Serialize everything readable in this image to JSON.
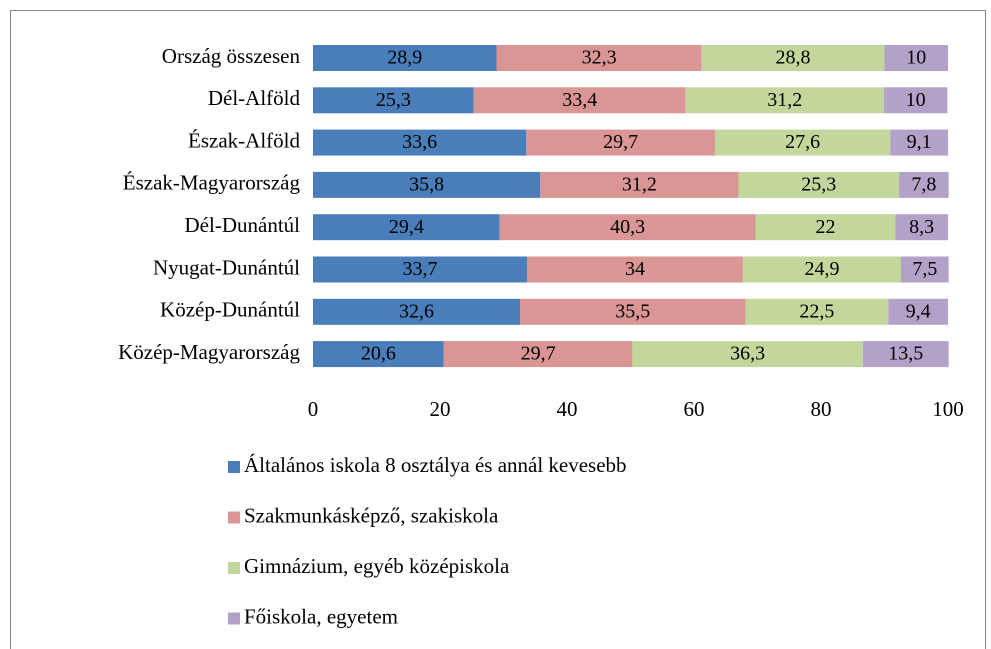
{
  "chart_data": {
    "type": "stacked-bar-horizontal",
    "categories": [
      "Ország összesen",
      "Dél-Alföld",
      "Észak-Alföld",
      "Észak-Magyarország",
      "Dél-Dunántúl",
      "Nyugat-Dunántúl",
      "Közép-Dunántúl",
      "Közép-Magyarország"
    ],
    "series": [
      {
        "name": "Általános iskola 8 osztálya és annál kevesebb",
        "color": "#4a7ebb",
        "values": [
          28.9,
          25.3,
          33.6,
          35.8,
          29.4,
          33.7,
          32.6,
          20.6
        ],
        "value_labels": [
          "28,9",
          "25,3",
          "33,6",
          "35,8",
          "29,4",
          "33,7",
          "32,6",
          "20,6"
        ]
      },
      {
        "name": "Szakmunkásképző, szakiskola",
        "color": "#d99694",
        "values": [
          32.3,
          33.4,
          29.7,
          31.2,
          40.3,
          34,
          35.5,
          29.7
        ],
        "value_labels": [
          "32,3",
          "33,4",
          "29,7",
          "31,2",
          "40,3",
          "34",
          "35,5",
          "29,7"
        ]
      },
      {
        "name": "Gimnázium, egyéb középiskola",
        "color": "#c3d69b",
        "values": [
          28.8,
          31.2,
          27.6,
          25.3,
          22,
          24.9,
          22.5,
          36.3
        ],
        "value_labels": [
          "28,8",
          "31,2",
          "27,6",
          "25,3",
          "22",
          "24,9",
          "22,5",
          "36,3"
        ]
      },
      {
        "name": "Főiskola, egyetem",
        "color": "#b3a2c7",
        "values": [
          10,
          10,
          9.1,
          7.8,
          8.3,
          7.5,
          9.4,
          13.5
        ],
        "value_labels": [
          "10",
          "10",
          "9,1",
          "7,8",
          "8,3",
          "7,5",
          "9,4",
          "13,5"
        ]
      }
    ],
    "xlim": [
      0,
      100
    ],
    "xticks": [
      0,
      20,
      40,
      60,
      80,
      100
    ],
    "legend": "bottom"
  }
}
